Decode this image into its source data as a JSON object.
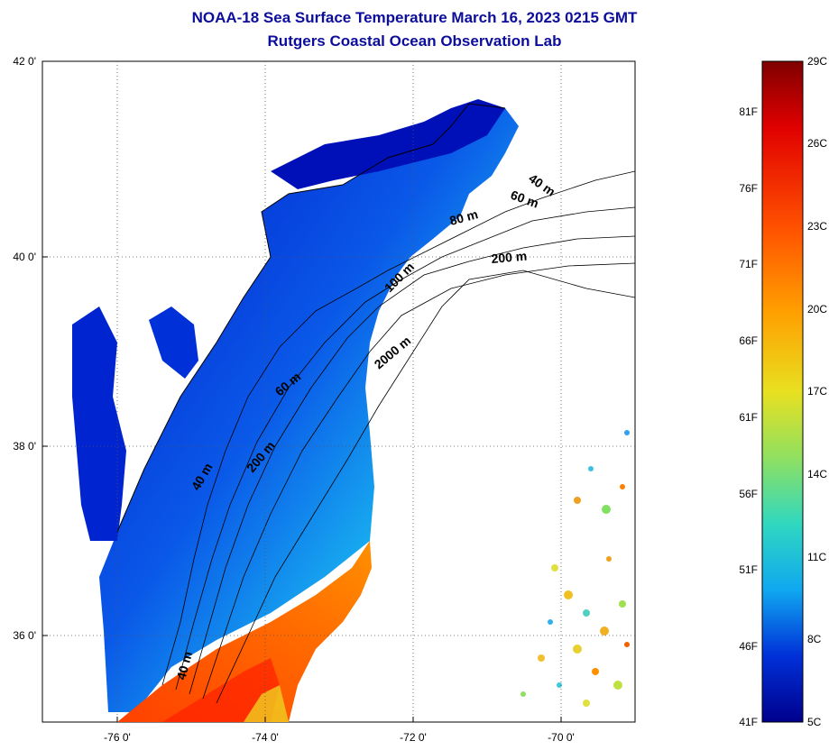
{
  "title": {
    "line1": "NOAA-18 Sea Surface Temperature March 16, 2023 0215 GMT",
    "line2": "Rutgers Coastal Ocean Observation Lab"
  },
  "map": {
    "lat_ticks": [
      {
        "label": "42 0'",
        "lat": 42
      },
      {
        "label": "40 0'",
        "lat": 40
      },
      {
        "label": "38 0'",
        "lat": 38
      },
      {
        "label": "36 0'",
        "lat": 36
      }
    ],
    "lon_ticks": [
      {
        "label": "-76 0'",
        "lon": -76
      },
      {
        "label": "-74 0'",
        "lon": -74
      },
      {
        "label": "-72 0'",
        "lon": -72
      },
      {
        "label": "-70 0'",
        "lon": -70
      }
    ],
    "lon_range": [
      -77,
      -69
    ],
    "lat_range": [
      35,
      42
    ],
    "grid": "dotted",
    "depth_labels": [
      "40 m",
      "60 m",
      "80 m",
      "200 m",
      "100 m",
      "2000 m",
      "60 m",
      "40 m",
      "200 m",
      "40 m"
    ]
  },
  "colorbar": {
    "min_c": 5,
    "max_c": 29,
    "celsius_labels": [
      "29C",
      "26C",
      "23C",
      "20C",
      "17C",
      "14C",
      "11C",
      "8C",
      "5C"
    ],
    "fahrenheit_labels": [
      "81F",
      "76F",
      "71F",
      "66F",
      "61F",
      "56F",
      "51F",
      "46F",
      "41F"
    ],
    "colors": [
      "#7f0000",
      "#e00000",
      "#ff6000",
      "#ffb000",
      "#e8e020",
      "#90e060",
      "#30d8c0",
      "#10b0f0",
      "#1060e0",
      "#0018d0",
      "#00008c"
    ]
  }
}
